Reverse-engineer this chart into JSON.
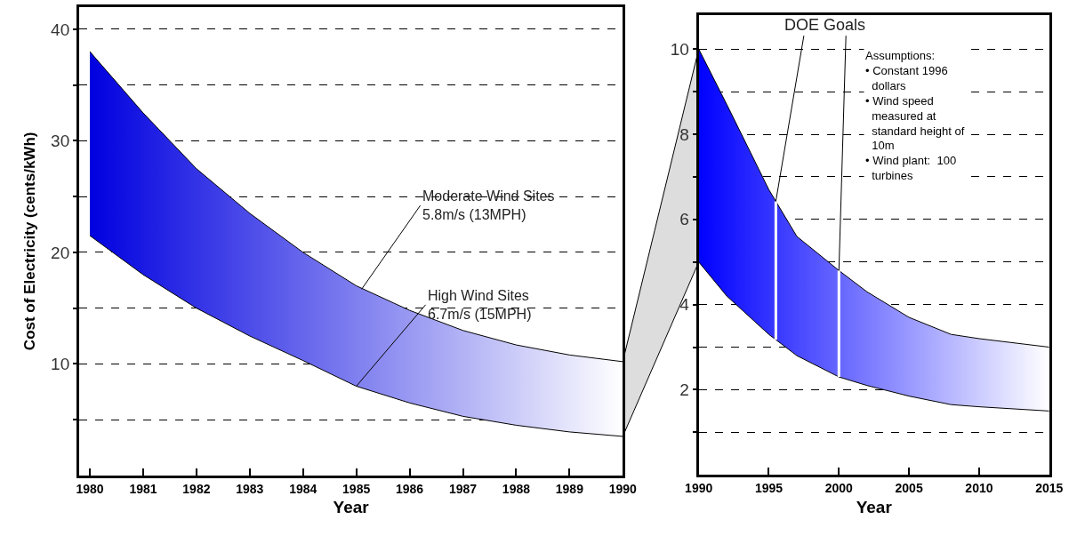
{
  "chart_data": [
    {
      "type": "area",
      "xlabel": "Year",
      "ylabel": "Cost of Electricity (cents/kWh)",
      "x": [
        1980,
        1981,
        1982,
        1983,
        1984,
        1985,
        1986,
        1987,
        1988,
        1989,
        1990
      ],
      "series": [
        {
          "type": "line",
          "color": "#000000",
          "values": [
            21.5,
            18,
            15,
            12.5,
            10.3,
            8,
            6.5,
            5.3,
            4.5,
            3.9,
            3.5
          ]
        },
        {
          "color": "#0000e0",
          "values": [
            38,
            32.5,
            27.5,
            23.5,
            20,
            17,
            14.8,
            13,
            11.7,
            10.8,
            10.2
          ]
        }
      ],
      "xlim": [
        1979.8,
        1990
      ],
      "xticks": [
        1980,
        1981,
        1982,
        1983,
        1984,
        1985,
        1986,
        1987,
        1988,
        1989,
        1990
      ],
      "ylim": [
        0,
        42
      ],
      "yticks": [
        {
          "value": 5,
          "label": null
        },
        10,
        {
          "value": 15,
          "label": null
        },
        20,
        {
          "value": 25,
          "label": null
        },
        30,
        {
          "value": 35,
          "label": null
        },
        40
      ],
      "grid": "y",
      "annotations": [
        {
          "text": "Moderate Wind Sites\n5.8m/s (13MPH)",
          "x": 1985.1,
          "y": 16.7
        },
        {
          "text": "High Wind Sites\n6.7m/s (15MPH)",
          "x": 1985,
          "y": 8
        }
      ]
    },
    {
      "type": "area",
      "xlabel": "Year",
      "x": [
        1990,
        1992,
        1995,
        1997,
        2000,
        2002,
        2005,
        2008,
        2010,
        2015
      ],
      "series": [
        {
          "type": "line",
          "color": "#000000",
          "values": [
            5,
            4.2,
            3.3,
            2.8,
            2.3,
            2.1,
            1.85,
            1.65,
            1.6,
            1.5
          ]
        },
        {
          "color": "#0000ff",
          "values": [
            10,
            8.7,
            6.7,
            5.6,
            4.8,
            4.3,
            3.7,
            3.3,
            3.2,
            3.0
          ]
        }
      ],
      "xlim": [
        1990,
        2015
      ],
      "xticks": [
        1990,
        1995,
        2000,
        2005,
        2010,
        2015
      ],
      "ylim": [
        0,
        10.8
      ],
      "yticks": [
        {
          "value": 1,
          "label": null
        },
        2,
        {
          "value": 3,
          "label": null
        },
        4,
        {
          "value": 5,
          "label": null
        },
        6,
        {
          "value": 7,
          "label": null
        },
        8,
        {
          "value": 9,
          "label": null
        },
        10
      ],
      "grid": "y",
      "ref_lines": [
        {
          "axis": "x",
          "value": 1995.5,
          "color": "#ffffff"
        },
        {
          "axis": "x",
          "value": 2000,
          "color": "#ffffff"
        }
      ],
      "annotations": [
        "DOE Goals",
        "Assumptions:\n• Constant 1996\n  dollars\n• Wind speed\n  measured at\n  standard height of\n  10m\n• Wind plant:  100\n  turbines"
      ]
    }
  ]
}
